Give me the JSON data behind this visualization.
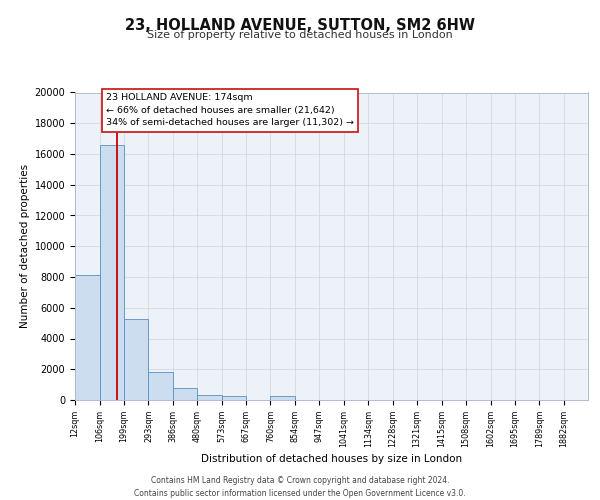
{
  "title": "23, HOLLAND AVENUE, SUTTON, SM2 6HW",
  "subtitle": "Size of property relative to detached houses in London",
  "xlabel": "Distribution of detached houses by size in London",
  "ylabel": "Number of detached properties",
  "bar_labels": [
    "12sqm",
    "106sqm",
    "199sqm",
    "293sqm",
    "386sqm",
    "480sqm",
    "573sqm",
    "667sqm",
    "760sqm",
    "854sqm",
    "947sqm",
    "1041sqm",
    "1134sqm",
    "1228sqm",
    "1321sqm",
    "1415sqm",
    "1508sqm",
    "1602sqm",
    "1695sqm",
    "1789sqm",
    "1882sqm"
  ],
  "bar_values": [
    8100,
    16600,
    5300,
    1850,
    800,
    350,
    280,
    0,
    280,
    0,
    0,
    0,
    0,
    0,
    0,
    0,
    0,
    0,
    0,
    0,
    0
  ],
  "bar_color": "#ccddf0",
  "bar_edge_color": "#5b8ec4",
  "grid_color": "#ccd4e0",
  "background_color": "#edf2f8",
  "annotation_line1": "23 HOLLAND AVENUE: 174sqm",
  "annotation_line2": "← 66% of detached houses are smaller (21,642)",
  "annotation_line3": "34% of semi-detached houses are larger (11,302) →",
  "red_line_x": 174,
  "ylim": [
    0,
    20000
  ],
  "yticks": [
    0,
    2000,
    4000,
    6000,
    8000,
    10000,
    12000,
    14000,
    16000,
    18000,
    20000
  ],
  "footer_line1": "Contains HM Land Registry data © Crown copyright and database right 2024.",
  "footer_line2": "Contains public sector information licensed under the Open Government Licence v3.0.",
  "bin_edges": [
    12,
    106,
    199,
    293,
    386,
    480,
    573,
    667,
    760,
    854,
    947,
    1041,
    1134,
    1228,
    1321,
    1415,
    1508,
    1602,
    1695,
    1789,
    1882
  ]
}
